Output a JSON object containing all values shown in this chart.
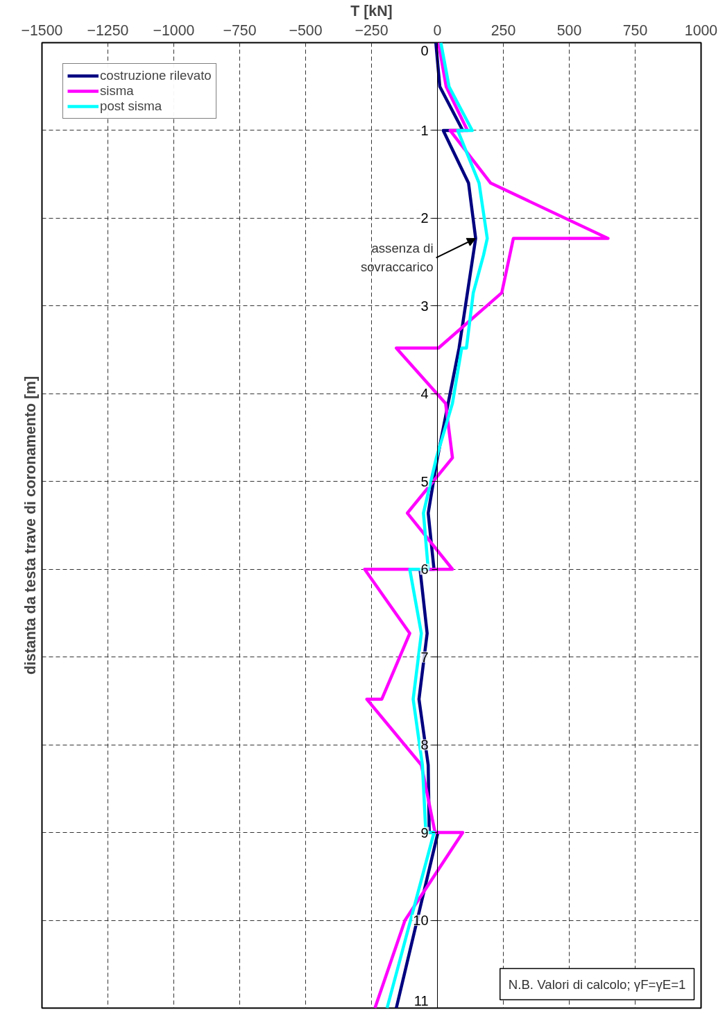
{
  "chart_data": {
    "type": "line",
    "orientation": "horizontal",
    "xlabel": "T [kN]",
    "ylabel": "distanta da testa trave di coronamento [m]",
    "xlim": [
      -1500,
      1000
    ],
    "xticks": [
      -1500,
      -1250,
      -1000,
      -750,
      -500,
      -250,
      0,
      250,
      500,
      750,
      1000
    ],
    "ylim": [
      11,
      0
    ],
    "yticks": [
      0,
      1,
      2,
      3,
      4,
      5,
      6,
      7,
      8,
      9,
      10,
      11
    ],
    "grid": true,
    "legend": "top left",
    "line_style": "solid",
    "marker": "none",
    "series": [
      {
        "name": "costruzione rilevato",
        "color": "#000080",
        "x": [
          0,
          0.5,
          1,
          1,
          1.6,
          2.23,
          3.48,
          4.73,
          5.36,
          6,
          6,
          6.73,
          7.48,
          8.23,
          9,
          9,
          11
        ],
        "values": [
          -6,
          9,
          96,
          22,
          118,
          145,
          82,
          0,
          -35,
          -13,
          -66,
          -39,
          -70,
          -35,
          -31,
          2,
          -156
        ]
      },
      {
        "name": "sisma",
        "color": "#ff00ff",
        "x": [
          0,
          0.5,
          1,
          1,
          1.6,
          2.23,
          2.23,
          2.85,
          3.48,
          3.48,
          4.11,
          4.73,
          5.36,
          6,
          6,
          6.73,
          7.48,
          7.48,
          8.23,
          9,
          9,
          10,
          11
        ],
        "values": [
          4,
          33,
          114,
          48,
          202,
          647,
          288,
          244,
          4,
          -156,
          31,
          57,
          -114,
          57,
          -276,
          -105,
          -211,
          -268,
          -61,
          -9,
          96,
          -123,
          -237
        ]
      },
      {
        "name": "post sisma",
        "color": "#00ffff",
        "x": [
          0,
          0.5,
          1,
          1,
          1.6,
          2.23,
          2.42,
          2.85,
          3.48,
          3.48,
          4.11,
          4.73,
          5.36,
          6,
          6,
          6.73,
          7.48,
          8.23,
          9,
          9,
          11
        ],
        "values": [
          13,
          44,
          132,
          77,
          158,
          189,
          175,
          136,
          110,
          92,
          57,
          -4,
          -53,
          -35,
          -105,
          -61,
          -92,
          -57,
          -44,
          -13,
          -191
        ]
      }
    ],
    "annotations": [
      {
        "text": "assenza di\nsovraccarico",
        "x": 145,
        "y": 2.23
      },
      "N.B. Valori di calcolo; γF=γE=1"
    ]
  }
}
